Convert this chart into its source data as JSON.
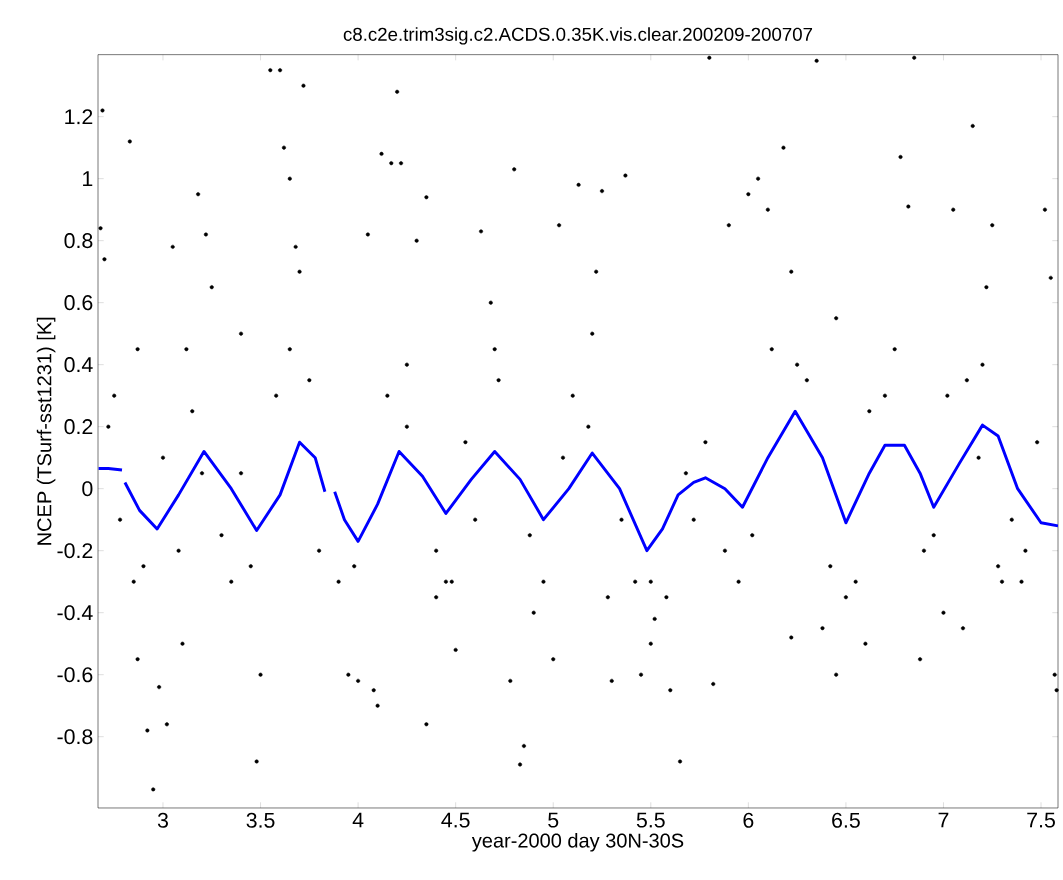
{
  "chart_data": {
    "type": "scatter",
    "title": "c8.c2e.trim3sig.c2.ACDS.0.35K.vis.clear.200209-200707",
    "xlabel": "year-2000 day 30N-30S",
    "ylabel": "NCEP (TSurf-sst1231) [K]",
    "xlim": [
      2.667,
      7.587
    ],
    "ylim": [
      -1.03,
      1.4
    ],
    "xticks": [
      3,
      3.5,
      4,
      4.5,
      5,
      5.5,
      6,
      6.5,
      7,
      7.5
    ],
    "yticks": [
      -0.8,
      -0.6,
      -0.4,
      -0.2,
      0,
      0.2,
      0.4,
      0.6,
      0.8,
      1,
      1.2
    ],
    "grid": false,
    "series": [
      {
        "color": "#000000",
        "marker": "circle",
        "x": [
          2.69,
          2.68,
          2.7,
          2.83,
          2.87,
          3.05,
          3.12,
          3.18,
          3.22,
          3.25,
          3.55,
          3.6,
          3.62,
          3.65,
          3.68,
          3.72,
          3.7,
          4.2,
          4.12,
          4.05,
          4.17,
          4.22,
          4.35,
          4.3,
          4.63,
          4.8,
          4.68,
          5.13,
          5.25,
          5.22,
          5.37,
          5.03,
          5.9,
          6.0,
          6.05,
          6.18,
          6.1,
          6.22,
          6.78,
          6.82,
          7.15,
          7.05,
          7.25,
          7.22,
          7.55,
          6.45,
          5.8,
          6.35,
          6.85,
          7.52,
          2.95,
          2.98,
          2.92,
          3.02,
          2.87,
          3.48,
          3.1,
          3.5,
          3.95,
          4.0,
          4.08,
          4.1,
          4.35,
          4.4,
          4.5,
          4.83,
          4.85,
          4.78,
          4.9,
          5.0,
          5.3,
          5.45,
          5.5,
          5.52,
          5.6,
          5.65,
          5.82,
          6.22,
          6.38,
          6.45,
          6.6,
          6.88,
          7.1,
          7.57,
          7.58,
          7.3,
          7.0,
          2.72,
          2.78,
          2.85,
          2.9,
          3.0,
          3.08,
          3.15,
          3.3,
          3.35,
          3.4,
          3.45,
          3.58,
          3.75,
          3.8,
          3.9,
          3.98,
          4.15,
          4.25,
          4.4,
          4.48,
          4.55,
          4.6,
          4.72,
          4.88,
          4.95,
          5.05,
          5.1,
          5.18,
          5.28,
          5.35,
          5.42,
          5.58,
          5.68,
          5.72,
          5.78,
          5.88,
          5.95,
          6.02,
          6.12,
          6.3,
          6.42,
          6.55,
          6.62,
          6.7,
          6.9,
          6.95,
          7.02,
          7.12,
          7.18,
          7.28,
          7.35,
          7.42,
          7.48,
          2.75,
          3.2,
          3.65,
          4.25,
          4.7,
          5.2,
          6.25,
          6.75,
          7.2,
          3.4,
          4.45,
          5.5,
          6.5,
          7.4
        ],
        "values": [
          1.22,
          0.84,
          0.74,
          1.12,
          0.45,
          0.78,
          0.45,
          0.95,
          0.82,
          0.65,
          1.35,
          1.35,
          1.1,
          1.0,
          0.78,
          1.3,
          0.7,
          1.28,
          1.08,
          0.82,
          1.05,
          1.05,
          0.94,
          0.8,
          0.83,
          1.03,
          0.6,
          0.98,
          0.96,
          0.7,
          1.01,
          0.85,
          0.85,
          0.95,
          1.0,
          1.1,
          0.9,
          0.7,
          1.07,
          0.91,
          1.17,
          0.9,
          0.85,
          0.65,
          0.68,
          0.55,
          1.39,
          1.38,
          1.39,
          0.9,
          -0.97,
          -0.64,
          -0.78,
          -0.76,
          -0.55,
          -0.88,
          -0.5,
          -0.6,
          -0.6,
          -0.62,
          -0.65,
          -0.7,
          -0.76,
          -0.35,
          -0.52,
          -0.89,
          -0.83,
          -0.62,
          -0.4,
          -0.55,
          -0.62,
          -0.6,
          -0.5,
          -0.42,
          -0.65,
          -0.88,
          -0.63,
          -0.48,
          -0.45,
          -0.6,
          -0.5,
          -0.55,
          -0.45,
          -0.6,
          -0.65,
          -0.3,
          -0.4,
          0.2,
          -0.1,
          -0.3,
          -0.25,
          0.1,
          -0.2,
          0.25,
          -0.15,
          -0.3,
          0.05,
          -0.25,
          0.3,
          0.35,
          -0.2,
          -0.3,
          -0.25,
          0.3,
          0.2,
          -0.2,
          -0.3,
          0.15,
          -0.1,
          0.35,
          -0.15,
          -0.3,
          0.1,
          0.3,
          0.2,
          -0.35,
          -0.1,
          -0.3,
          -0.35,
          0.05,
          -0.1,
          0.15,
          -0.2,
          -0.3,
          -0.15,
          0.45,
          0.35,
          -0.25,
          -0.3,
          0.25,
          0.3,
          -0.2,
          -0.15,
          0.3,
          0.35,
          0.1,
          -0.25,
          -0.1,
          -0.2,
          0.15,
          0.3,
          0.05,
          0.45,
          0.4,
          0.45,
          0.5,
          0.4,
          0.45,
          0.4,
          0.5,
          -0.3,
          -0.3,
          -0.35,
          -0.3
        ]
      },
      {
        "type": "line",
        "color": "#0000ff",
        "marker": "none",
        "x": [
          2.67,
          2.72,
          2.79,
          2.8,
          2.805,
          2.88,
          2.97,
          3.08,
          3.21,
          3.35,
          3.48,
          3.6,
          3.7,
          3.78,
          3.83,
          3.85,
          3.88,
          3.93,
          4.0,
          4.1,
          4.21,
          4.33,
          4.45,
          4.58,
          4.7,
          4.83,
          4.95,
          5.08,
          5.2,
          5.34,
          5.48,
          5.56,
          5.64,
          5.72,
          5.78,
          5.88,
          5.97,
          6.1,
          6.24,
          6.38,
          6.5,
          6.62,
          6.7,
          6.8,
          6.88,
          6.95,
          7.08,
          7.2,
          7.28,
          7.38,
          7.5,
          7.587
        ],
        "values": [
          0.065,
          0.065,
          0.06,
          null,
          0.02,
          -0.07,
          -0.13,
          -0.02,
          0.12,
          0.0,
          -0.135,
          -0.02,
          0.15,
          0.1,
          -0.01,
          null,
          -0.01,
          -0.1,
          -0.17,
          -0.05,
          0.12,
          0.04,
          -0.08,
          0.03,
          0.12,
          0.03,
          -0.1,
          0.0,
          0.115,
          0.0,
          -0.2,
          -0.13,
          -0.02,
          0.02,
          0.035,
          0.0,
          -0.06,
          0.1,
          0.25,
          0.1,
          -0.11,
          0.05,
          0.14,
          0.14,
          0.05,
          -0.06,
          0.08,
          0.205,
          0.17,
          0.0,
          -0.11,
          -0.12
        ]
      }
    ]
  }
}
